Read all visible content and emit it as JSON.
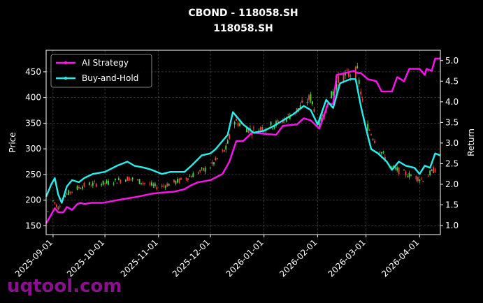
{
  "chart_data": {
    "type": "line",
    "title": "CBOND - 118058.SH",
    "subtitle": "118058.SH",
    "ylabel": "Price",
    "y2label": "Return",
    "x_ticks": [
      "2025-09-01",
      "2025-10-01",
      "2025-11-01",
      "2025-12-01",
      "2026-01-01",
      "2026-02-01",
      "2026-03-01",
      "2026-04-01"
    ],
    "x_range": [
      "2025-08-28",
      "2026-04-13"
    ],
    "ylim": [
      133,
      492
    ],
    "yticks": [
      150,
      200,
      250,
      300,
      350,
      400,
      450
    ],
    "y2lim": [
      0.78,
      5.25
    ],
    "y2ticks": [
      1.0,
      1.5,
      2.0,
      2.5,
      3.0,
      3.5,
      4.0,
      4.5,
      5.0
    ],
    "grid": true,
    "legend_position": "upper-left",
    "series": [
      {
        "name": "AI Strategy",
        "color": "#ff10f0",
        "axis": "right",
        "points": [
          [
            "2025-08-28",
            1.05
          ],
          [
            "2025-08-31",
            1.27
          ],
          [
            "2025-09-02",
            1.42
          ],
          [
            "2025-09-04",
            1.32
          ],
          [
            "2025-09-07",
            1.32
          ],
          [
            "2025-09-09",
            1.45
          ],
          [
            "2025-09-12",
            1.38
          ],
          [
            "2025-09-15",
            1.52
          ],
          [
            "2025-09-17",
            1.55
          ],
          [
            "2025-09-19",
            1.52
          ],
          [
            "2025-09-23",
            1.55
          ],
          [
            "2025-09-30",
            1.55
          ],
          [
            "2025-10-10",
            1.63
          ],
          [
            "2025-10-20",
            1.7
          ],
          [
            "2025-10-28",
            1.77
          ],
          [
            "2025-11-03",
            1.8
          ],
          [
            "2025-11-10",
            1.82
          ],
          [
            "2025-11-16",
            1.88
          ],
          [
            "2025-11-20",
            1.98
          ],
          [
            "2025-11-24",
            2.05
          ],
          [
            "2025-12-01",
            2.1
          ],
          [
            "2025-12-08",
            2.25
          ],
          [
            "2025-12-12",
            2.55
          ],
          [
            "2025-12-16",
            3.05
          ],
          [
            "2025-12-20",
            3.05
          ],
          [
            "2025-12-25",
            3.25
          ],
          [
            "2026-01-08",
            3.2
          ],
          [
            "2026-01-12",
            3.42
          ],
          [
            "2026-01-20",
            3.45
          ],
          [
            "2026-01-24",
            3.6
          ],
          [
            "2026-01-28",
            3.55
          ],
          [
            "2026-02-02",
            3.35
          ],
          [
            "2026-02-07",
            3.95
          ],
          [
            "2026-02-10",
            3.95
          ],
          [
            "2026-02-12",
            4.65
          ],
          [
            "2026-02-22",
            4.75
          ],
          [
            "2026-02-24",
            4.7
          ],
          [
            "2026-02-26",
            4.7
          ],
          [
            "2026-03-02",
            4.55
          ],
          [
            "2026-03-07",
            4.5
          ],
          [
            "2026-03-10",
            4.25
          ],
          [
            "2026-03-16",
            4.25
          ],
          [
            "2026-03-19",
            4.6
          ],
          [
            "2026-03-23",
            4.5
          ],
          [
            "2026-03-26",
            4.8
          ],
          [
            "2026-04-01",
            4.8
          ],
          [
            "2026-04-04",
            4.65
          ],
          [
            "2026-04-05",
            4.8
          ],
          [
            "2026-04-08",
            4.75
          ],
          [
            "2026-04-10",
            5.05
          ],
          [
            "2026-04-13",
            5.05
          ]
        ]
      },
      {
        "name": "Buy-and-Hold",
        "color": "#22f0ee",
        "axis": "right",
        "points": [
          [
            "2025-08-28",
            1.7
          ],
          [
            "2025-08-31",
            2.0
          ],
          [
            "2025-09-02",
            2.15
          ],
          [
            "2025-09-04",
            1.75
          ],
          [
            "2025-09-06",
            1.55
          ],
          [
            "2025-09-09",
            1.95
          ],
          [
            "2025-09-12",
            2.1
          ],
          [
            "2025-09-16",
            2.05
          ],
          [
            "2025-09-19",
            2.15
          ],
          [
            "2025-09-24",
            2.25
          ],
          [
            "2025-10-01",
            2.3
          ],
          [
            "2025-10-08",
            2.45
          ],
          [
            "2025-10-14",
            2.55
          ],
          [
            "2025-10-18",
            2.45
          ],
          [
            "2025-10-24",
            2.4
          ],
          [
            "2025-10-28",
            2.35
          ],
          [
            "2025-11-03",
            2.25
          ],
          [
            "2025-11-08",
            2.3
          ],
          [
            "2025-11-16",
            2.3
          ],
          [
            "2025-11-20",
            2.45
          ],
          [
            "2025-11-26",
            2.7
          ],
          [
            "2025-12-01",
            2.75
          ],
          [
            "2025-12-04",
            2.85
          ],
          [
            "2025-12-08",
            3.05
          ],
          [
            "2025-12-11",
            3.2
          ],
          [
            "2025-12-14",
            3.75
          ],
          [
            "2025-12-20",
            3.45
          ],
          [
            "2025-12-26",
            3.25
          ],
          [
            "2026-01-01",
            3.3
          ],
          [
            "2026-01-06",
            3.4
          ],
          [
            "2026-01-12",
            3.55
          ],
          [
            "2026-01-18",
            3.7
          ],
          [
            "2026-01-24",
            3.9
          ],
          [
            "2026-01-28",
            3.8
          ],
          [
            "2026-02-01",
            3.45
          ],
          [
            "2026-02-06",
            4.05
          ],
          [
            "2026-02-10",
            3.85
          ],
          [
            "2026-02-14",
            4.45
          ],
          [
            "2026-02-20",
            4.55
          ],
          [
            "2026-02-23",
            4.55
          ],
          [
            "2026-02-26",
            3.9
          ],
          [
            "2026-03-01",
            3.35
          ],
          [
            "2026-03-04",
            2.85
          ],
          [
            "2026-03-08",
            2.75
          ],
          [
            "2026-03-13",
            2.55
          ],
          [
            "2026-03-16",
            2.35
          ],
          [
            "2026-03-20",
            2.55
          ],
          [
            "2026-03-24",
            2.45
          ],
          [
            "2026-03-29",
            2.4
          ],
          [
            "2026-04-01",
            2.25
          ],
          [
            "2026-04-04",
            2.45
          ],
          [
            "2026-04-07",
            2.4
          ],
          [
            "2026-04-10",
            2.75
          ],
          [
            "2026-04-13",
            2.7
          ]
        ]
      }
    ],
    "price_path": [
      [
        "2025-08-28",
        170
      ],
      [
        "2025-09-01",
        200
      ],
      [
        "2025-09-04",
        185
      ],
      [
        "2025-09-08",
        210
      ],
      [
        "2025-09-14",
        222
      ],
      [
        "2025-09-20",
        230
      ],
      [
        "2025-10-01",
        233
      ],
      [
        "2025-10-15",
        243
      ],
      [
        "2025-11-01",
        225
      ],
      [
        "2025-11-15",
        240
      ],
      [
        "2025-12-01",
        265
      ],
      [
        "2025-12-10",
        300
      ],
      [
        "2025-12-15",
        355
      ],
      [
        "2025-12-25",
        335
      ],
      [
        "2026-01-10",
        350
      ],
      [
        "2026-01-20",
        375
      ],
      [
        "2026-01-28",
        400
      ],
      [
        "2026-02-02",
        350
      ],
      [
        "2026-02-08",
        395
      ],
      [
        "2026-02-14",
        440
      ],
      [
        "2026-02-24",
        450
      ],
      [
        "2026-03-01",
        350
      ],
      [
        "2026-03-08",
        305
      ],
      [
        "2026-03-15",
        265
      ],
      [
        "2026-03-25",
        250
      ],
      [
        "2026-04-03",
        240
      ],
      [
        "2026-04-13",
        270
      ]
    ],
    "candle_up_color": "#44dd44",
    "candle_down_color": "#ee4444"
  },
  "watermark": "uqtool.com"
}
